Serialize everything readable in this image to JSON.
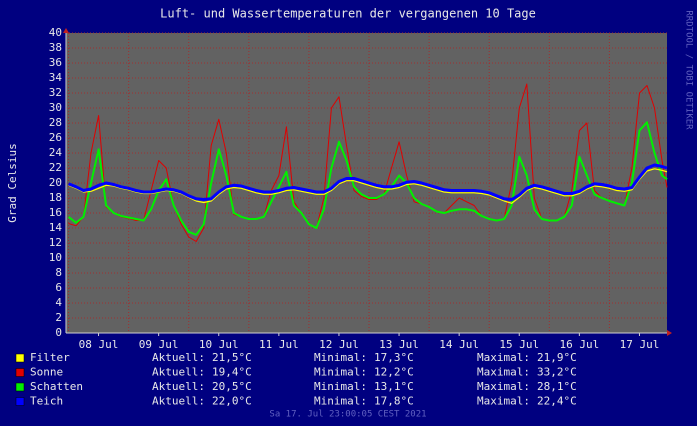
{
  "chart_data": {
    "type": "line",
    "title": "Luft- und Wassertemperaturen der vergangenen 10 Tage",
    "y_label": "Grad Celsius",
    "side_label": "RRDTOOL / TOBI OETIKER",
    "footer": "Sa 17. Jul 23:00:05 CEST 2021",
    "x": [
      "2021-07-08 00:00",
      "2021-07-08 03:00",
      "2021-07-08 06:00",
      "2021-07-08 09:00",
      "2021-07-08 12:00",
      "2021-07-08 15:00",
      "2021-07-08 18:00",
      "2021-07-08 21:00",
      "2021-07-09 00:00",
      "2021-07-09 03:00",
      "2021-07-09 06:00",
      "2021-07-09 09:00",
      "2021-07-09 12:00",
      "2021-07-09 15:00",
      "2021-07-09 18:00",
      "2021-07-09 21:00",
      "2021-07-10 00:00",
      "2021-07-10 03:00",
      "2021-07-10 06:00",
      "2021-07-10 09:00",
      "2021-07-10 12:00",
      "2021-07-10 15:00",
      "2021-07-10 18:00",
      "2021-07-10 21:00",
      "2021-07-11 00:00",
      "2021-07-11 03:00",
      "2021-07-11 06:00",
      "2021-07-11 09:00",
      "2021-07-11 12:00",
      "2021-07-11 15:00",
      "2021-07-11 18:00",
      "2021-07-11 21:00",
      "2021-07-12 00:00",
      "2021-07-12 03:00",
      "2021-07-12 06:00",
      "2021-07-12 09:00",
      "2021-07-12 12:00",
      "2021-07-12 15:00",
      "2021-07-12 18:00",
      "2021-07-12 21:00",
      "2021-07-13 00:00",
      "2021-07-13 03:00",
      "2021-07-13 06:00",
      "2021-07-13 09:00",
      "2021-07-13 12:00",
      "2021-07-13 15:00",
      "2021-07-13 18:00",
      "2021-07-13 21:00",
      "2021-07-14 00:00",
      "2021-07-14 03:00",
      "2021-07-14 06:00",
      "2021-07-14 09:00",
      "2021-07-14 12:00",
      "2021-07-14 15:00",
      "2021-07-14 18:00",
      "2021-07-14 21:00",
      "2021-07-15 00:00",
      "2021-07-15 03:00",
      "2021-07-15 06:00",
      "2021-07-15 09:00",
      "2021-07-15 12:00",
      "2021-07-15 15:00",
      "2021-07-15 18:00",
      "2021-07-15 21:00",
      "2021-07-16 00:00",
      "2021-07-16 03:00",
      "2021-07-16 06:00",
      "2021-07-16 09:00",
      "2021-07-16 12:00",
      "2021-07-16 15:00",
      "2021-07-16 18:00",
      "2021-07-16 21:00",
      "2021-07-17 00:00",
      "2021-07-17 03:00",
      "2021-07-17 06:00",
      "2021-07-17 09:00",
      "2021-07-17 12:00",
      "2021-07-17 15:00",
      "2021-07-17 18:00",
      "2021-07-17 21:00",
      "2021-07-17 23:00"
    ],
    "xlim": [
      "2021-07-07 23:00",
      "2021-07-17 23:00"
    ],
    "xticks": [
      {
        "value": "2021-07-08 12:00",
        "label": "08 Jul"
      },
      {
        "value": "2021-07-09 12:00",
        "label": "09 Jul"
      },
      {
        "value": "2021-07-10 12:00",
        "label": "10 Jul"
      },
      {
        "value": "2021-07-11 12:00",
        "label": "11 Jul"
      },
      {
        "value": "2021-07-12 12:00",
        "label": "12 Jul"
      },
      {
        "value": "2021-07-13 12:00",
        "label": "13 Jul"
      },
      {
        "value": "2021-07-14 12:00",
        "label": "14 Jul"
      },
      {
        "value": "2021-07-15 12:00",
        "label": "15 Jul"
      },
      {
        "value": "2021-07-16 12:00",
        "label": "16 Jul"
      },
      {
        "value": "2021-07-17 12:00",
        "label": "17 Jul"
      }
    ],
    "xgrid": [
      "2021-07-08 00:00",
      "2021-07-09 00:00",
      "2021-07-10 00:00",
      "2021-07-11 00:00",
      "2021-07-12 00:00",
      "2021-07-13 00:00",
      "2021-07-14 00:00",
      "2021-07-15 00:00",
      "2021-07-16 00:00",
      "2021-07-17 00:00"
    ],
    "ylim": [
      0,
      40
    ],
    "yticks": [
      0,
      2,
      4,
      6,
      8,
      10,
      12,
      14,
      16,
      18,
      20,
      22,
      24,
      26,
      28,
      30,
      32,
      34,
      36,
      38,
      40
    ],
    "grid": true,
    "stat_labels": [
      "Aktuell:",
      "Minimal:",
      "Maximal:"
    ],
    "series": [
      {
        "name": "Sonne",
        "color": "#e00000",
        "width": 1,
        "stats": [
          "19,4°C",
          "12,2°C",
          "33,2°C"
        ],
        "values": [
          14.6,
          14.3,
          15.5,
          24,
          29,
          16.8,
          16,
          15.5,
          15.3,
          15,
          15,
          19,
          23,
          22,
          17,
          14.5,
          12.8,
          12.2,
          14,
          25,
          28.5,
          24,
          15.8,
          15.5,
          15.2,
          15.2,
          15.5,
          19,
          21,
          27.5,
          17.5,
          16,
          14.5,
          14,
          18,
          30,
          31.5,
          25,
          19,
          18.2,
          17.8,
          17.8,
          18.5,
          22,
          25.5,
          21,
          17.5,
          17.2,
          16.8,
          16.2,
          16,
          17,
          18,
          17.5,
          17,
          15.6,
          15.2,
          15,
          15.2,
          20,
          30,
          33.2,
          18,
          15.2,
          15,
          15,
          15.5,
          19,
          27,
          28,
          19,
          18,
          17.6,
          17.3,
          17,
          22,
          32,
          33,
          30,
          23,
          19.4
        ]
      },
      {
        "name": "Schatten",
        "color": "#00f000",
        "width": 2,
        "stats": [
          "20,5°C",
          "13,1°C",
          "28,1°C"
        ],
        "values": [
          15.5,
          14.7,
          15.5,
          20,
          24.5,
          17,
          16,
          15.6,
          15.4,
          15.2,
          15,
          16.5,
          19,
          20.5,
          17,
          15,
          13.5,
          13.1,
          14.5,
          20,
          24.5,
          21,
          16,
          15.5,
          15.2,
          15.2,
          15.5,
          17.5,
          19.5,
          21.5,
          17,
          16,
          14.5,
          14,
          16.5,
          22,
          25.5,
          23,
          19.5,
          18.5,
          18,
          18,
          18.5,
          19.5,
          21,
          20,
          18,
          17.2,
          16.8,
          16.2,
          16,
          16.3,
          16.5,
          16.5,
          16.3,
          15.6,
          15.2,
          15,
          15.2,
          17,
          23.5,
          21,
          16.5,
          15.2,
          15,
          15,
          15.5,
          17,
          23.5,
          21,
          18.5,
          18,
          17.6,
          17.3,
          17,
          20,
          27,
          28.1,
          24,
          21,
          20.5
        ]
      },
      {
        "name": "Filter",
        "color": "#ffff00",
        "width": 1.2,
        "stats": [
          "21,5°C",
          "17,3°C",
          "21,9°C"
        ],
        "values": [
          19.7,
          19.3,
          18.8,
          18.9,
          19.3,
          19.7,
          19.6,
          19.3,
          19.1,
          18.8,
          18.6,
          18.6,
          18.8,
          19,
          18.9,
          18.6,
          18.1,
          17.6,
          17.4,
          17.6,
          18.5,
          19.2,
          19.4,
          19.3,
          19,
          18.7,
          18.5,
          18.5,
          18.7,
          19,
          19.1,
          18.9,
          18.7,
          18.5,
          18.5,
          19,
          19.9,
          20.3,
          20.3,
          20,
          19.7,
          19.4,
          19.2,
          19.2,
          19.4,
          19.8,
          19.9,
          19.7,
          19.4,
          19.1,
          18.8,
          18.7,
          18.7,
          18.7,
          18.7,
          18.6,
          18.4,
          18,
          17.6,
          17.3,
          18.1,
          19,
          19.4,
          19.2,
          18.9,
          18.6,
          18.3,
          18.3,
          18.6,
          19.2,
          19.6,
          19.5,
          19.3,
          19,
          18.9,
          19.1,
          20.5,
          21.6,
          21.9,
          21.7,
          21.5
        ]
      },
      {
        "name": "Teich",
        "color": "#0000ff",
        "width": 3,
        "stats": [
          "22,0°C",
          "17,8°C",
          "22,4°C"
        ],
        "values": [
          19.9,
          19.5,
          19,
          19.2,
          19.7,
          20,
          19.8,
          19.5,
          19.3,
          19,
          18.8,
          18.8,
          19,
          19.2,
          19.1,
          18.8,
          18.3,
          17.9,
          17.8,
          17.9,
          18.8,
          19.5,
          19.7,
          19.6,
          19.3,
          19,
          18.8,
          18.8,
          19,
          19.3,
          19.4,
          19.2,
          19,
          18.8,
          18.8,
          19.3,
          20.2,
          20.6,
          20.6,
          20.3,
          20,
          19.7,
          19.5,
          19.5,
          19.7,
          20.1,
          20.2,
          20,
          19.7,
          19.4,
          19.1,
          19,
          19,
          19,
          19,
          18.9,
          18.7,
          18.3,
          17.9,
          17.8,
          18.4,
          19.3,
          19.7,
          19.5,
          19.2,
          18.9,
          18.6,
          18.6,
          18.9,
          19.5,
          19.9,
          19.8,
          19.6,
          19.3,
          19.2,
          19.4,
          20.8,
          22,
          22.4,
          22.2,
          22
        ]
      }
    ],
    "legend_order": [
      2,
      0,
      1,
      3
    ]
  }
}
